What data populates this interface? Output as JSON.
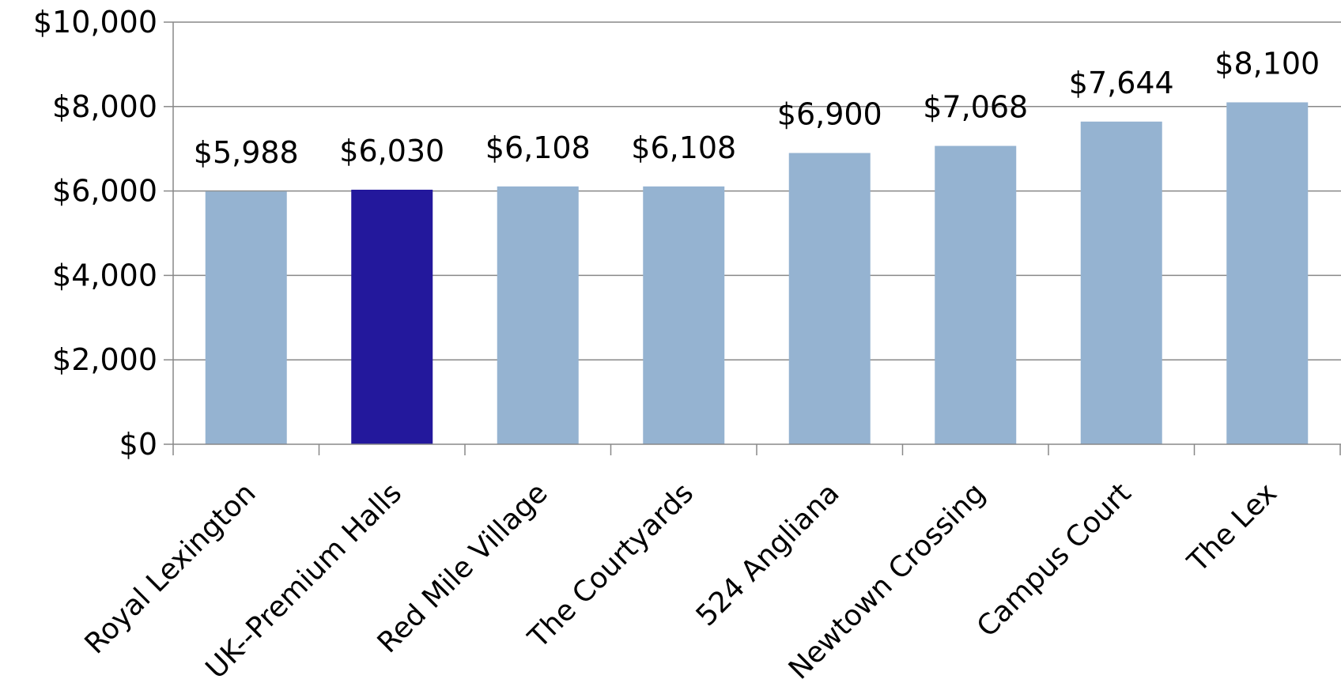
{
  "chart_data": {
    "type": "bar",
    "title": "",
    "xlabel": "",
    "ylabel": "",
    "categories": [
      "Royal Lexington",
      "UK--Premium Halls",
      "Red Mile Village",
      "The Courtyards",
      "524 Angliana",
      "Newtown Crossing",
      "Campus Court",
      "The Lex"
    ],
    "values": [
      5988,
      6030,
      6108,
      6108,
      6900,
      7068,
      7644,
      8100
    ],
    "data_labels": [
      "$5,988",
      "$6,030",
      "$6,108",
      "$6,108",
      "$6,900",
      "$7,068",
      "$7,644",
      "$8,100"
    ],
    "ylim": [
      0,
      10000
    ],
    "yticks": [
      0,
      2000,
      4000,
      6000,
      8000,
      10000
    ],
    "ytick_labels": [
      "$0",
      "$2,000",
      "$4,000",
      "$6,000",
      "$8,000",
      "$10,000"
    ],
    "grid": true,
    "legend": "none",
    "colors": {
      "default_bar": "#95b3d1",
      "highlight_bar": "#23189c",
      "grid": "#888888",
      "axis": "#888888"
    },
    "highlight_index": 1
  }
}
